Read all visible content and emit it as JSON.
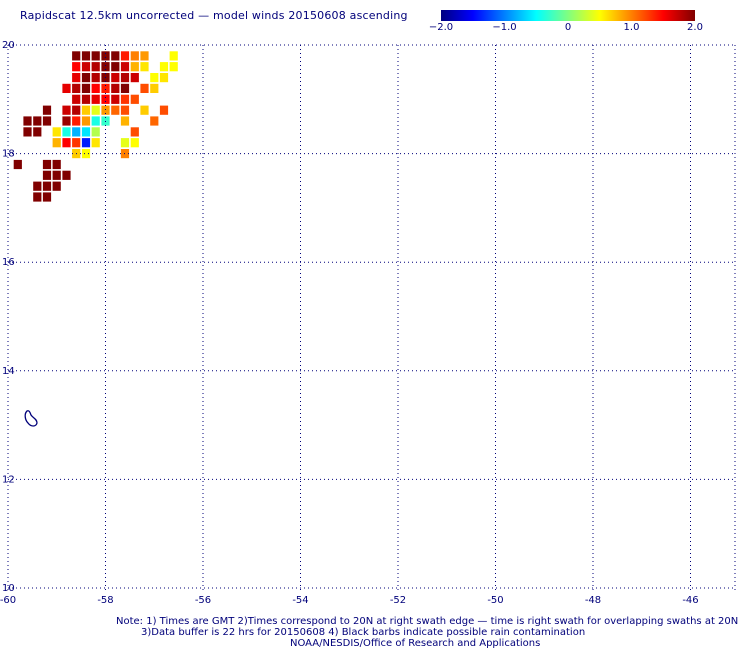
{
  "title": "Rapidscat 12.5km uncorrected — model winds 20150608 ascending",
  "colorbar": {
    "min": -2.0,
    "max": 2.0,
    "tick_labels": [
      "−2.0",
      "−1.0",
      "0",
      "1.0",
      "2.0"
    ],
    "tick_values": [
      -2.0,
      -1.0,
      0,
      1.0,
      2.0
    ],
    "colors": [
      "#000080",
      "#0000ff",
      "#0080ff",
      "#00ffff",
      "#80ff80",
      "#ffff00",
      "#ff8000",
      "#ff0000",
      "#800000"
    ]
  },
  "map": {
    "lon_range": [
      -60,
      -45
    ],
    "lat_range": [
      10,
      20
    ],
    "lon_labels": [
      "-60",
      "-58",
      "-56",
      "-54",
      "-52",
      "-50",
      "-48",
      "-46"
    ],
    "lon_ticks": [
      -60,
      -58,
      -56,
      -54,
      -52,
      -50,
      -48,
      -46
    ],
    "lat_labels": [
      "10",
      "12",
      "14",
      "16",
      "18",
      "20"
    ],
    "lat_ticks": [
      10,
      12,
      14,
      16,
      18,
      20
    ],
    "grid_style": "dotted",
    "island": "Barbados coastline outline"
  },
  "chart_data": {
    "type": "heatmap",
    "title": "Rapidscat 12.5km uncorrected — model winds 20150608 ascending",
    "x_label": "",
    "y_label": "",
    "xlim": [
      -60,
      -45
    ],
    "ylim": [
      10,
      20
    ],
    "cell_size_deg": 0.25,
    "cells": [
      {
        "lon": -58.6,
        "lat": 19.8,
        "v": 2.0
      },
      {
        "lon": -58.4,
        "lat": 19.8,
        "v": 2.0
      },
      {
        "lon": -58.2,
        "lat": 19.8,
        "v": 2.0
      },
      {
        "lon": -58.0,
        "lat": 19.8,
        "v": 2.0
      },
      {
        "lon": -57.8,
        "lat": 19.8,
        "v": 2.0
      },
      {
        "lon": -57.6,
        "lat": 19.8,
        "v": 1.4
      },
      {
        "lon": -57.4,
        "lat": 19.8,
        "v": 1.0
      },
      {
        "lon": -57.2,
        "lat": 19.8,
        "v": 0.9
      },
      {
        "lon": -56.6,
        "lat": 19.8,
        "v": 0.5
      },
      {
        "lon": -58.6,
        "lat": 19.6,
        "v": 1.5
      },
      {
        "lon": -58.4,
        "lat": 19.6,
        "v": 1.7
      },
      {
        "lon": -58.2,
        "lat": 19.6,
        "v": 1.8
      },
      {
        "lon": -58.0,
        "lat": 19.6,
        "v": 2.0
      },
      {
        "lon": -57.8,
        "lat": 19.6,
        "v": 2.0
      },
      {
        "lon": -57.6,
        "lat": 19.6,
        "v": 1.7
      },
      {
        "lon": -57.4,
        "lat": 19.6,
        "v": 0.8
      },
      {
        "lon": -57.2,
        "lat": 19.6,
        "v": 0.6
      },
      {
        "lon": -56.8,
        "lat": 19.6,
        "v": 0.5
      },
      {
        "lon": -56.6,
        "lat": 19.6,
        "v": 0.5
      },
      {
        "lon": -58.6,
        "lat": 19.4,
        "v": 1.6
      },
      {
        "lon": -58.4,
        "lat": 19.4,
        "v": 2.0
      },
      {
        "lon": -58.2,
        "lat": 19.4,
        "v": 1.8
      },
      {
        "lon": -58.0,
        "lat": 19.4,
        "v": 2.0
      },
      {
        "lon": -57.8,
        "lat": 19.4,
        "v": 1.7
      },
      {
        "lon": -57.6,
        "lat": 19.4,
        "v": 1.8
      },
      {
        "lon": -57.4,
        "lat": 19.4,
        "v": 1.7
      },
      {
        "lon": -57.0,
        "lat": 19.4,
        "v": 0.5
      },
      {
        "lon": -56.8,
        "lat": 19.4,
        "v": 0.6
      },
      {
        "lon": -58.8,
        "lat": 19.2,
        "v": 1.6
      },
      {
        "lon": -58.6,
        "lat": 19.2,
        "v": 1.8
      },
      {
        "lon": -58.4,
        "lat": 19.2,
        "v": 2.0
      },
      {
        "lon": -58.2,
        "lat": 19.2,
        "v": 1.5
      },
      {
        "lon": -58.0,
        "lat": 19.2,
        "v": 1.4
      },
      {
        "lon": -57.8,
        "lat": 19.2,
        "v": 1.8
      },
      {
        "lon": -57.6,
        "lat": 19.2,
        "v": 2.0
      },
      {
        "lon": -57.2,
        "lat": 19.2,
        "v": 1.2
      },
      {
        "lon": -57.0,
        "lat": 19.2,
        "v": 0.7
      },
      {
        "lon": -58.6,
        "lat": 19.0,
        "v": 1.7
      },
      {
        "lon": -58.4,
        "lat": 19.0,
        "v": 1.8
      },
      {
        "lon": -58.2,
        "lat": 19.0,
        "v": 1.6
      },
      {
        "lon": -58.0,
        "lat": 19.0,
        "v": 1.5
      },
      {
        "lon": -57.8,
        "lat": 19.0,
        "v": 1.7
      },
      {
        "lon": -57.6,
        "lat": 19.0,
        "v": 1.3
      },
      {
        "lon": -57.4,
        "lat": 19.0,
        "v": 1.2
      },
      {
        "lon": -58.8,
        "lat": 18.8,
        "v": 1.7
      },
      {
        "lon": -58.6,
        "lat": 18.8,
        "v": 1.8
      },
      {
        "lon": -58.4,
        "lat": 18.8,
        "v": 0.7
      },
      {
        "lon": -58.2,
        "lat": 18.8,
        "v": 0.4
      },
      {
        "lon": -58.0,
        "lat": 18.8,
        "v": 0.9
      },
      {
        "lon": -57.8,
        "lat": 18.8,
        "v": 1.1
      },
      {
        "lon": -57.6,
        "lat": 18.8,
        "v": 1.2
      },
      {
        "lon": -57.2,
        "lat": 18.8,
        "v": 0.7
      },
      {
        "lon": -56.8,
        "lat": 18.8,
        "v": 1.2
      },
      {
        "lon": -58.8,
        "lat": 18.6,
        "v": 1.9
      },
      {
        "lon": -58.6,
        "lat": 18.6,
        "v": 1.4
      },
      {
        "lon": -58.4,
        "lat": 18.6,
        "v": 0.9
      },
      {
        "lon": -58.2,
        "lat": 18.6,
        "v": -0.4
      },
      {
        "lon": -58.0,
        "lat": 18.6,
        "v": -0.3
      },
      {
        "lon": -57.6,
        "lat": 18.6,
        "v": 0.8
      },
      {
        "lon": -57.0,
        "lat": 18.6,
        "v": 1.1
      },
      {
        "lon": -59.0,
        "lat": 18.4,
        "v": 0.6
      },
      {
        "lon": -58.8,
        "lat": 18.4,
        "v": -0.4
      },
      {
        "lon": -58.6,
        "lat": 18.4,
        "v": -0.8
      },
      {
        "lon": -58.4,
        "lat": 18.4,
        "v": -0.6
      },
      {
        "lon": -58.2,
        "lat": 18.4,
        "v": 0.2
      },
      {
        "lon": -57.4,
        "lat": 18.4,
        "v": 1.2
      },
      {
        "lon": -59.0,
        "lat": 18.2,
        "v": 0.8
      },
      {
        "lon": -58.8,
        "lat": 18.2,
        "v": 1.5
      },
      {
        "lon": -58.6,
        "lat": 18.2,
        "v": 1.3
      },
      {
        "lon": -58.4,
        "lat": 18.2,
        "v": -1.4
      },
      {
        "lon": -58.2,
        "lat": 18.2,
        "v": 0.6
      },
      {
        "lon": -57.6,
        "lat": 18.2,
        "v": 0.4
      },
      {
        "lon": -57.4,
        "lat": 18.2,
        "v": 0.5
      },
      {
        "lon": -58.6,
        "lat": 18.0,
        "v": 0.7
      },
      {
        "lon": -58.4,
        "lat": 18.0,
        "v": 0.5
      },
      {
        "lon": -57.6,
        "lat": 18.0,
        "v": 1.0
      },
      {
        "lon": -59.6,
        "lat": 18.6,
        "v": 2.0
      },
      {
        "lon": -59.4,
        "lat": 18.6,
        "v": 2.0
      },
      {
        "lon": -59.2,
        "lat": 18.6,
        "v": 2.0
      },
      {
        "lon": -59.6,
        "lat": 18.4,
        "v": 2.0
      },
      {
        "lon": -59.4,
        "lat": 18.4,
        "v": 2.0
      },
      {
        "lon": -59.2,
        "lat": 18.8,
        "v": 2.0
      },
      {
        "lon": -59.2,
        "lat": 17.8,
        "v": 2.0
      },
      {
        "lon": -59.0,
        "lat": 17.8,
        "v": 2.0
      },
      {
        "lon": -59.2,
        "lat": 17.6,
        "v": 2.0
      },
      {
        "lon": -59.0,
        "lat": 17.6,
        "v": 2.0
      },
      {
        "lon": -58.8,
        "lat": 17.6,
        "v": 2.0
      },
      {
        "lon": -59.2,
        "lat": 17.4,
        "v": 2.0
      },
      {
        "lon": -59.4,
        "lat": 17.4,
        "v": 2.0
      },
      {
        "lon": -59.4,
        "lat": 17.2,
        "v": 2.0
      },
      {
        "lon": -59.2,
        "lat": 17.2,
        "v": 2.0
      },
      {
        "lon": -59.0,
        "lat": 17.4,
        "v": 2.0
      },
      {
        "lon": -59.8,
        "lat": 17.8,
        "v": 2.0
      }
    ]
  },
  "notes": {
    "line1": "Note: 1) Times are GMT 2)Times correspond to 20N at right swath edge — time is right swath for overlapping swaths at 20N",
    "line2": "3)Data buffer is 22 hrs for 20150608 4) Black barbs indicate possible rain contamination",
    "line3": "NOAA/NESDIS/Office of Research and Applications"
  }
}
